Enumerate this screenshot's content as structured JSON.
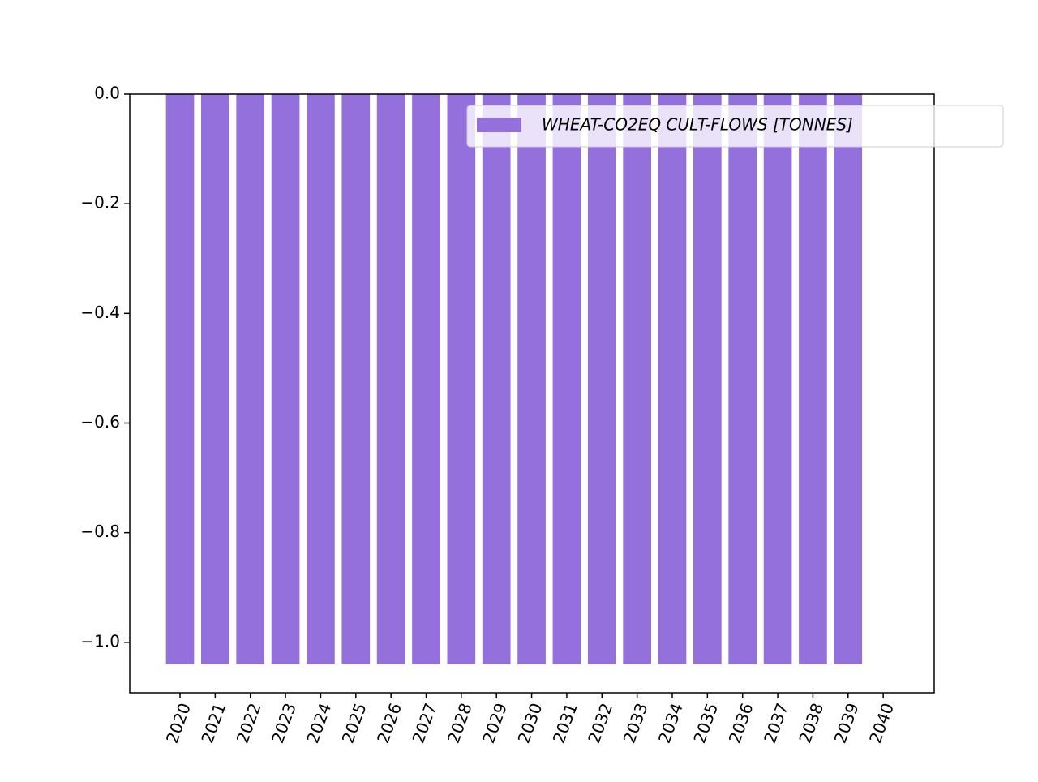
{
  "chart_data": {
    "type": "bar",
    "x": [
      2020,
      2021,
      2022,
      2023,
      2024,
      2025,
      2026,
      2027,
      2028,
      2029,
      2030,
      2031,
      2032,
      2033,
      2034,
      2035,
      2036,
      2037,
      2038,
      2039
    ],
    "series": [
      {
        "name": "WHEAT-CO2EQ CULT-FLOWS [TONNES]",
        "color": "#9370db",
        "values": [
          -1.04,
          -1.04,
          -1.04,
          -1.04,
          -1.04,
          -1.04,
          -1.04,
          -1.04,
          -1.04,
          -1.04,
          -1.04,
          -1.04,
          -1.04,
          -1.04,
          -1.04,
          -1.04,
          -1.04,
          -1.04,
          -1.04,
          -1.04
        ]
      }
    ],
    "xlim": [
      2018.57,
      2041.45
    ],
    "xticks": [
      2020,
      2021,
      2022,
      2023,
      2024,
      2025,
      2026,
      2027,
      2028,
      2029,
      2030,
      2031,
      2032,
      2033,
      2034,
      2035,
      2036,
      2037,
      2038,
      2039,
      2040
    ],
    "ylim": [
      -1.092,
      0
    ],
    "yticks": [
      {
        "value": 0,
        "label": "0.0"
      },
      {
        "value": -0.2,
        "label": "−0.2"
      },
      {
        "value": -0.4,
        "label": "−0.4"
      },
      {
        "value": -0.6,
        "label": "−0.6"
      },
      {
        "value": -0.8,
        "label": "−0.8"
      },
      {
        "value": -1.0,
        "label": "−1.0"
      }
    ],
    "legend": "upper right"
  }
}
